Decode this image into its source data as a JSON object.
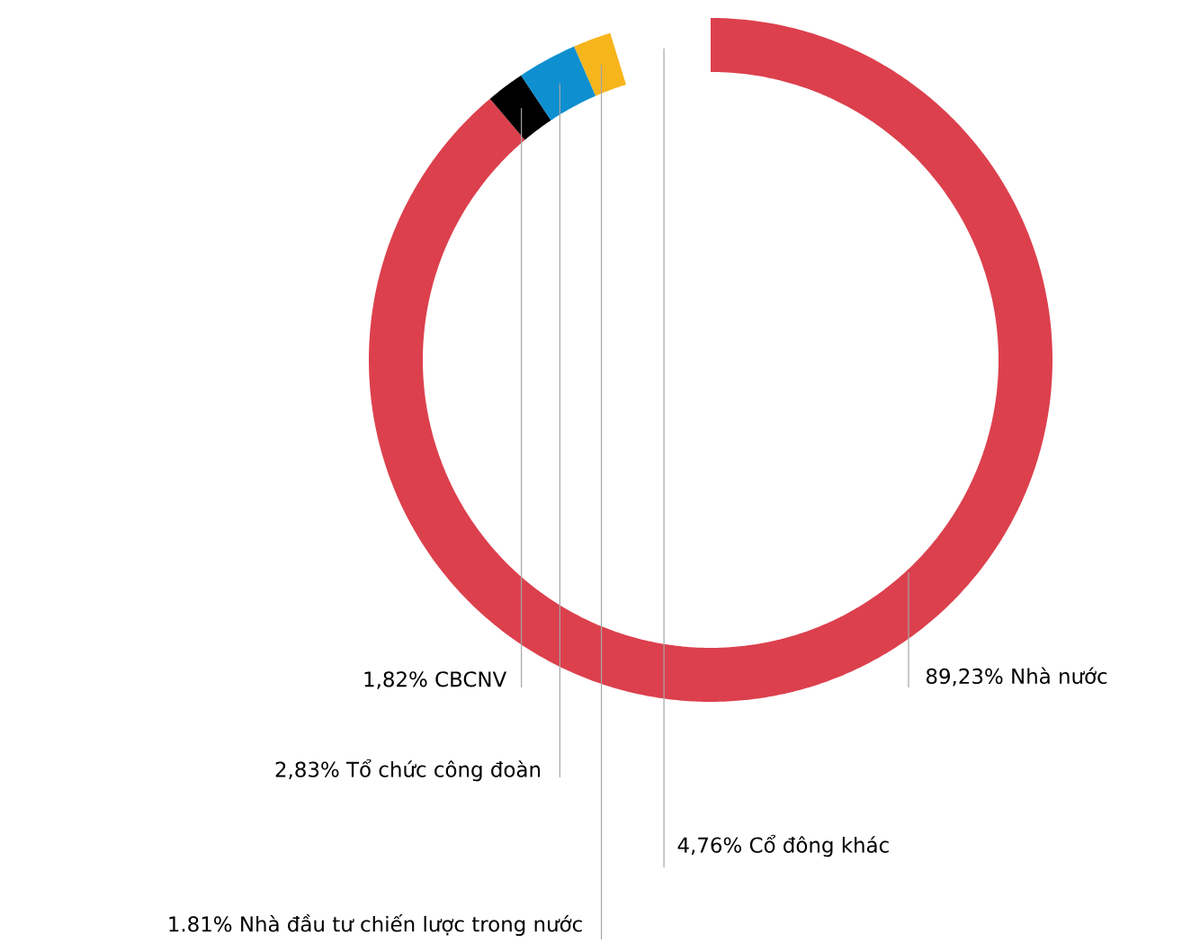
{
  "chart_data": {
    "type": "donut",
    "categories": [
      "Nhà nước",
      "CBCNV",
      "Tổ chức công đoàn",
      "Nhà đầu tư chiến lược trong nước",
      "Cổ đông khác"
    ],
    "values": [
      89.23,
      1.82,
      2.83,
      1.81,
      4.76
    ],
    "value_labels": [
      "89,23%",
      "1,82%",
      "2,83%",
      "1.81%",
      "4,76%"
    ],
    "colors": [
      "#dc404d",
      "#000000",
      "#0e8fd0",
      "#f7b51c",
      "#ffffff"
    ]
  }
}
